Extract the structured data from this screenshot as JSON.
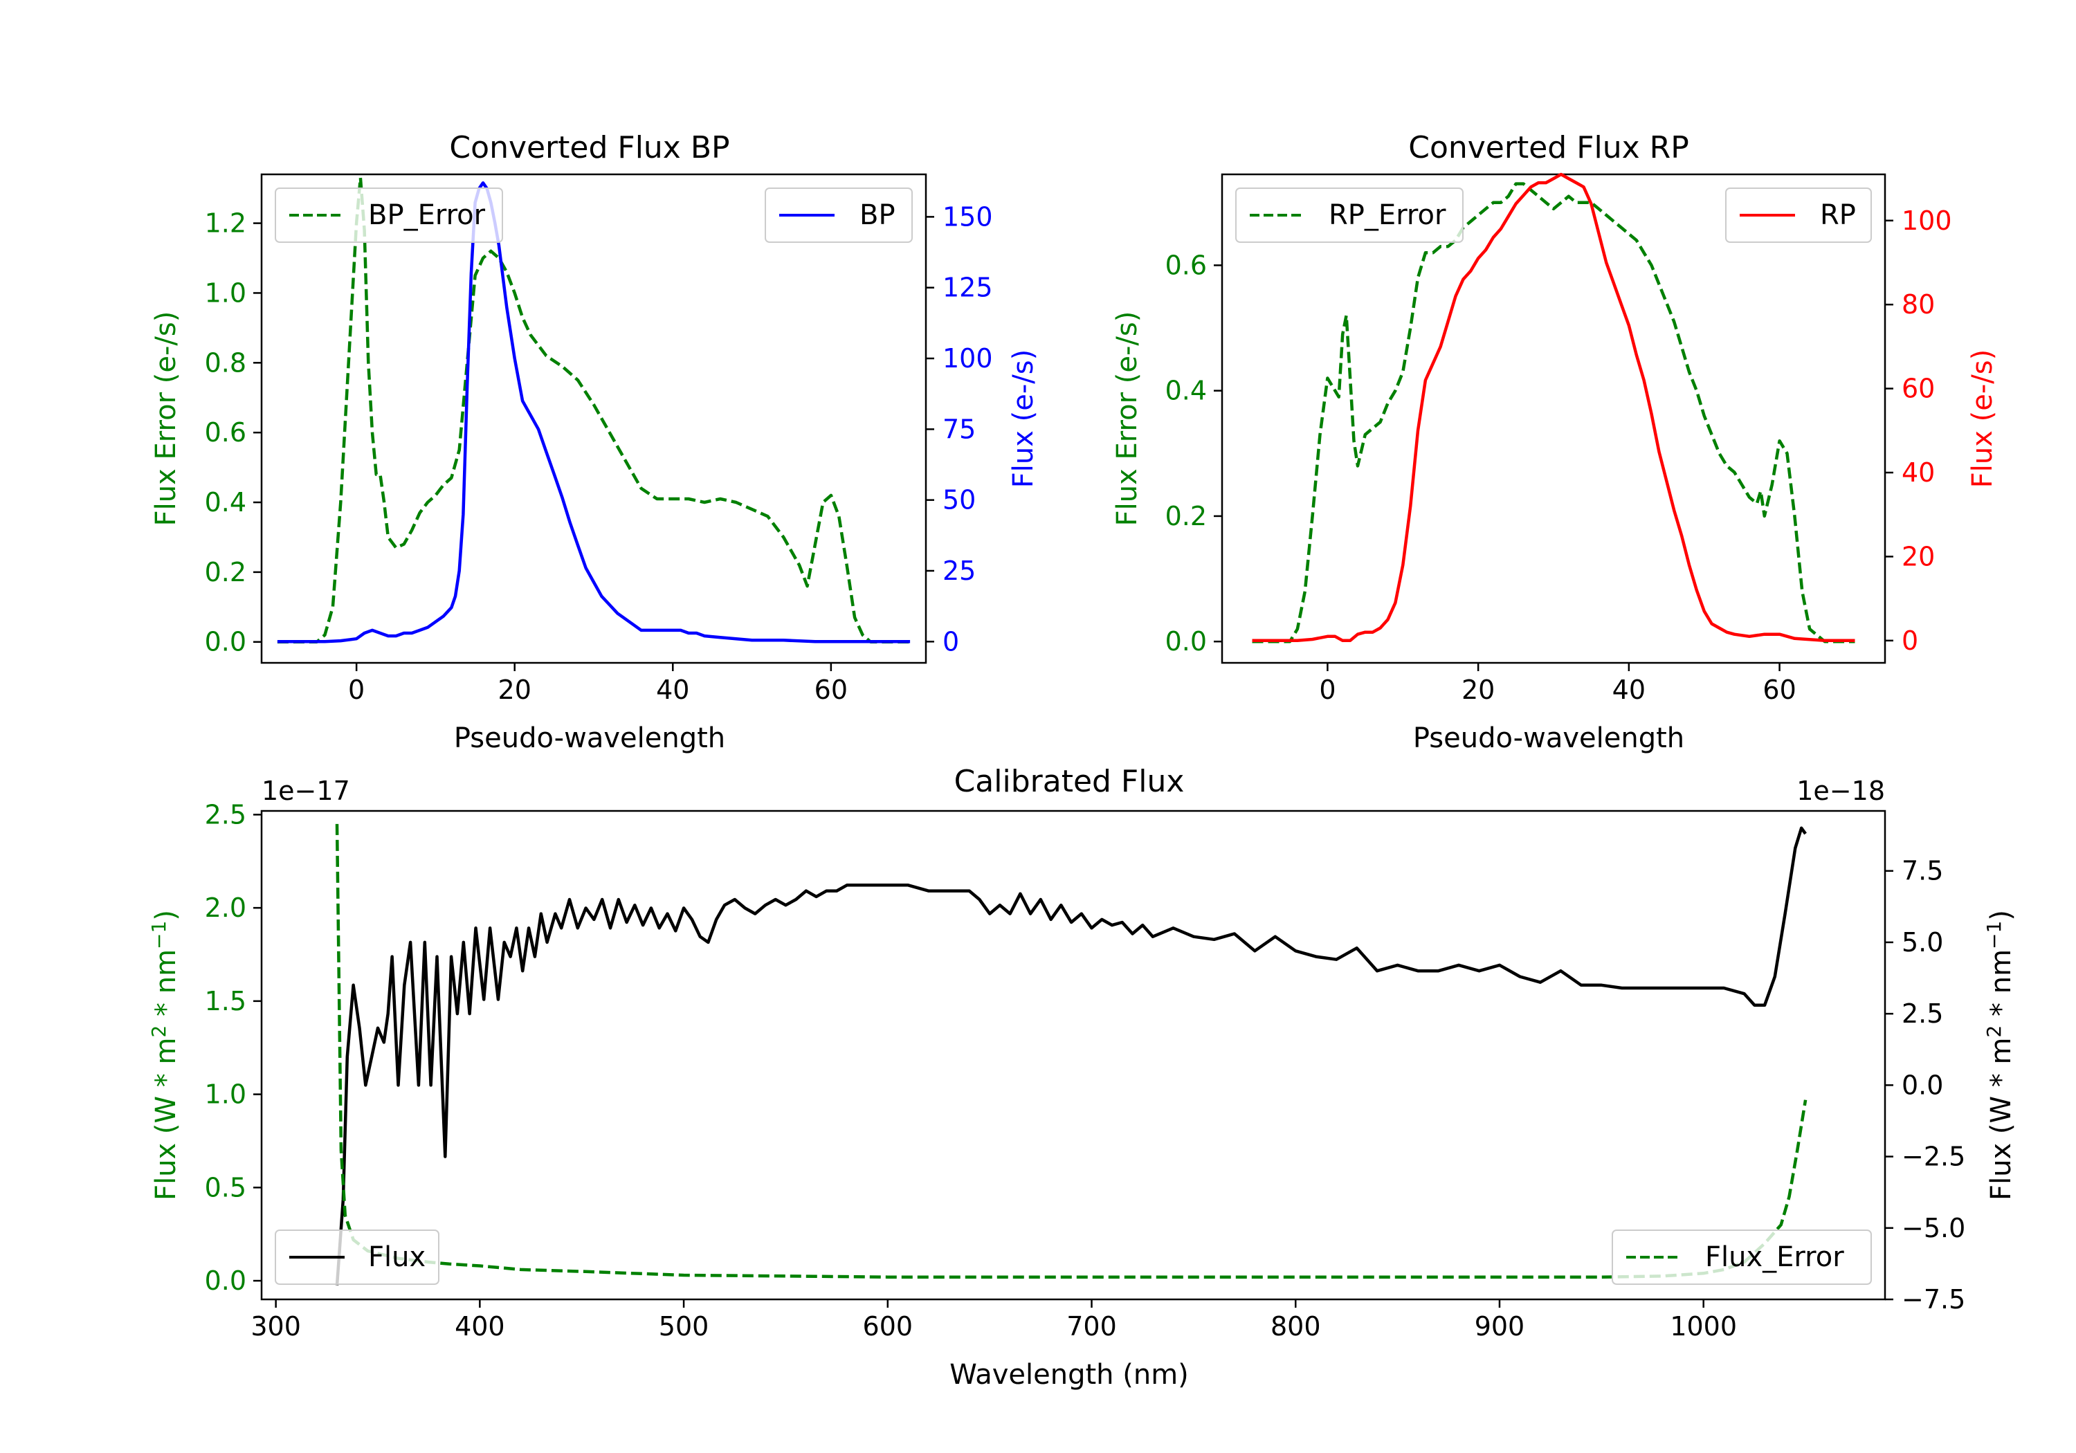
{
  "colors": {
    "error": "#008000",
    "bp": "#0000ff",
    "rp": "#ff0000",
    "flux": "#000000"
  },
  "chart_data": [
    {
      "id": "bp",
      "type": "line",
      "title": "Converted Flux BP",
      "xlabel": "Pseudo-wavelength",
      "ylabel_left": "Flux Error (e-/s)",
      "ylabel_right": "Flux (e-/s)",
      "xlim": [
        -12,
        72
      ],
      "ylim_left": [
        -0.06,
        1.34
      ],
      "ylim_right": [
        -7.5,
        165
      ],
      "xticks": [
        0,
        20,
        40,
        60
      ],
      "xtick_labels": [
        "0",
        "20",
        "40",
        "60"
      ],
      "yticks_left": [
        0.0,
        0.2,
        0.4,
        0.6,
        0.8,
        1.0,
        1.2
      ],
      "ytick_labels_left": [
        "0.0",
        "0.2",
        "0.4",
        "0.6",
        "0.8",
        "1.0",
        "1.2"
      ],
      "yticks_right": [
        0,
        25,
        50,
        75,
        100,
        125,
        150
      ],
      "ytick_labels_right": [
        "0",
        "25",
        "50",
        "75",
        "100",
        "125",
        "150"
      ],
      "legend_left": "top-left",
      "legend_right": "top-right",
      "series": [
        {
          "name": "BP_Error",
          "axis": "left",
          "style": "dashed",
          "color": "#008000",
          "x": [
            -10,
            -5,
            -4,
            -3,
            -2,
            -1,
            0,
            0.5,
            1,
            1.5,
            2,
            2.5,
            3,
            3.5,
            4,
            5,
            6,
            7,
            8,
            9,
            10,
            11,
            12,
            13,
            14,
            15,
            16,
            17,
            18,
            19,
            20,
            21,
            22,
            24,
            26,
            28,
            30,
            32,
            34,
            36,
            38,
            40,
            42,
            44,
            46,
            48,
            50,
            52,
            54,
            56,
            57,
            58,
            59,
            60,
            61,
            62,
            63,
            64,
            65,
            66,
            68,
            70
          ],
          "y": [
            0.0,
            0.0,
            0.02,
            0.1,
            0.4,
            0.8,
            1.2,
            1.33,
            1.18,
            0.8,
            0.6,
            0.48,
            0.48,
            0.4,
            0.3,
            0.27,
            0.28,
            0.32,
            0.37,
            0.4,
            0.42,
            0.45,
            0.47,
            0.55,
            0.8,
            1.05,
            1.1,
            1.12,
            1.1,
            1.06,
            1.0,
            0.93,
            0.88,
            0.82,
            0.79,
            0.75,
            0.68,
            0.6,
            0.52,
            0.44,
            0.41,
            0.41,
            0.41,
            0.4,
            0.41,
            0.4,
            0.38,
            0.36,
            0.3,
            0.22,
            0.16,
            0.28,
            0.4,
            0.42,
            0.36,
            0.22,
            0.07,
            0.02,
            0.0,
            0.0,
            0.0,
            0.0
          ]
        },
        {
          "name": "BP",
          "axis": "right",
          "style": "solid",
          "color": "#0000ff",
          "x": [
            -10,
            -4,
            -2,
            0,
            1,
            2,
            3,
            4,
            5,
            6,
            7,
            8,
            9,
            10,
            11,
            12,
            12.5,
            13,
            13.5,
            14,
            14.5,
            15,
            15.5,
            16,
            16.5,
            17,
            17.5,
            18,
            19,
            20,
            21,
            22,
            23,
            24,
            25,
            26,
            27,
            28,
            29,
            30,
            31,
            32,
            33,
            34,
            35,
            36,
            37,
            38,
            39,
            40,
            41,
            42,
            43,
            44,
            46,
            48,
            50,
            54,
            58,
            62,
            66,
            70
          ],
          "y": [
            0,
            0,
            0.3,
            1.0,
            3,
            4,
            3,
            2,
            2,
            3,
            3,
            4,
            5,
            7,
            9,
            12,
            16,
            25,
            45,
            90,
            130,
            155,
            160,
            162,
            160,
            155,
            148,
            140,
            118,
            100,
            85,
            80,
            75,
            67,
            59,
            51,
            42,
            34,
            26,
            21,
            16,
            13,
            10,
            8,
            6,
            4,
            4,
            4,
            4,
            4,
            4,
            3,
            3,
            2,
            1.5,
            1,
            0.5,
            0.5,
            0,
            0,
            0,
            0
          ]
        }
      ]
    },
    {
      "id": "rp",
      "type": "line",
      "title": "Converted Flux RP",
      "xlabel": "Pseudo-wavelength",
      "ylabel_left": "Flux Error (e-/s)",
      "ylabel_right": "Flux (e-/s)",
      "xlim": [
        -14,
        74
      ],
      "ylim_left": [
        -0.034,
        0.745
      ],
      "ylim_right": [
        -5.3,
        111
      ],
      "xticks": [
        0,
        20,
        40,
        60
      ],
      "xtick_labels": [
        "0",
        "20",
        "40",
        "60"
      ],
      "yticks_left": [
        0.0,
        0.2,
        0.4,
        0.6
      ],
      "ytick_labels_left": [
        "0.0",
        "0.2",
        "0.4",
        "0.6"
      ],
      "yticks_right": [
        0,
        20,
        40,
        60,
        80,
        100
      ],
      "ytick_labels_right": [
        "0",
        "20",
        "40",
        "60",
        "80",
        "100"
      ],
      "legend_left": "top-left",
      "legend_right": "top-right",
      "series": [
        {
          "name": "RP_Error",
          "axis": "left",
          "style": "dashed",
          "color": "#008000",
          "x": [
            -10,
            -5,
            -4,
            -3,
            -2,
            -1,
            0,
            1,
            1.5,
            2,
            2.5,
            3,
            3.5,
            4,
            5,
            6,
            7,
            8,
            9,
            10,
            11,
            12,
            13,
            14,
            15,
            16,
            17,
            18,
            19,
            20,
            21,
            22,
            23,
            24,
            25,
            26,
            27,
            28,
            29,
            30,
            31,
            32,
            33,
            34,
            35,
            36,
            37,
            38,
            39,
            40,
            41,
            42,
            43,
            44,
            45,
            46,
            47,
            48,
            49,
            50,
            51,
            52,
            53,
            54,
            55,
            56,
            57,
            57.5,
            58,
            59,
            60,
            61,
            62,
            63,
            64,
            66,
            70
          ],
          "y": [
            0.0,
            0.0,
            0.02,
            0.08,
            0.2,
            0.33,
            0.42,
            0.4,
            0.39,
            0.49,
            0.52,
            0.42,
            0.32,
            0.28,
            0.33,
            0.34,
            0.35,
            0.38,
            0.4,
            0.43,
            0.5,
            0.58,
            0.62,
            0.62,
            0.63,
            0.63,
            0.64,
            0.66,
            0.67,
            0.68,
            0.69,
            0.7,
            0.7,
            0.71,
            0.73,
            0.73,
            0.72,
            0.71,
            0.7,
            0.69,
            0.7,
            0.71,
            0.7,
            0.7,
            0.7,
            0.69,
            0.68,
            0.67,
            0.66,
            0.65,
            0.64,
            0.62,
            0.6,
            0.57,
            0.54,
            0.51,
            0.47,
            0.43,
            0.4,
            0.36,
            0.33,
            0.3,
            0.28,
            0.27,
            0.25,
            0.23,
            0.22,
            0.24,
            0.2,
            0.25,
            0.32,
            0.3,
            0.2,
            0.08,
            0.02,
            0.0,
            0.0
          ]
        },
        {
          "name": "RP",
          "axis": "right",
          "style": "solid",
          "color": "#ff0000",
          "x": [
            -10,
            -4,
            -2,
            0,
            1,
            2,
            3,
            4,
            5,
            6,
            7,
            8,
            9,
            10,
            11,
            12,
            13,
            14,
            15,
            16,
            17,
            18,
            19,
            20,
            21,
            22,
            23,
            24,
            25,
            26,
            27,
            28,
            29,
            30,
            31,
            32,
            33,
            34,
            35,
            36,
            37,
            38,
            39,
            40,
            41,
            42,
            43,
            44,
            45,
            46,
            47,
            48,
            49,
            50,
            51,
            52,
            53,
            54,
            56,
            58,
            60,
            62,
            66,
            70
          ],
          "y": [
            0,
            0,
            0.3,
            1,
            1,
            0,
            0,
            1.5,
            2,
            2,
            3,
            5,
            9,
            18,
            32,
            50,
            62,
            66,
            70,
            76,
            82,
            86,
            88,
            91,
            93,
            96,
            98,
            101,
            104,
            106,
            108,
            109,
            109,
            110,
            111,
            110,
            109,
            108,
            104,
            97,
            90,
            85,
            80,
            75,
            68,
            62,
            54,
            45,
            38,
            31,
            25,
            18,
            12,
            7,
            4,
            3,
            2,
            1.5,
            1,
            1.5,
            1.5,
            0.5,
            0,
            0
          ]
        }
      ]
    },
    {
      "id": "cal",
      "type": "line",
      "title": "Calibrated Flux",
      "xlabel": "Wavelength (nm)",
      "ylabel_left": "Flux (W * m",
      "ylabel_right": "Flux (W * m",
      "ylabel_sup_1": "2",
      "ylabel_mid": " * nm",
      "ylabel_sup_2": "−1",
      "ylabel_end": ")",
      "offset_left": "1e−17",
      "offset_right": "1e−18",
      "xlim": [
        293,
        1089
      ],
      "ylim_left": [
        -0.1,
        2.52
      ],
      "ylim_right": [
        -7.5,
        9.6
      ],
      "xticks": [
        300,
        400,
        500,
        600,
        700,
        800,
        900,
        1000
      ],
      "xtick_labels": [
        "300",
        "400",
        "500",
        "600",
        "700",
        "800",
        "900",
        "1000"
      ],
      "yticks_left": [
        0.0,
        0.5,
        1.0,
        1.5,
        2.0,
        2.5
      ],
      "ytick_labels_left": [
        "0.0",
        "0.5",
        "1.0",
        "1.5",
        "2.0",
        "2.5"
      ],
      "yticks_right": [
        -7.5,
        -5.0,
        -2.5,
        0.0,
        2.5,
        5.0,
        7.5
      ],
      "ytick_labels_right": [
        "−7.5",
        "−5.0",
        "−2.5",
        "0.0",
        "2.5",
        "5.0",
        "7.5"
      ],
      "legend_left": "bottom-left",
      "legend_right": "bottom-right",
      "series": [
        {
          "name": "Flux",
          "axis": "right",
          "style": "solid",
          "color": "#000000",
          "x": [
            330,
            331,
            333,
            335,
            338,
            341,
            344,
            347,
            350,
            353,
            355,
            357,
            360,
            363,
            366,
            370,
            373,
            376,
            379,
            383,
            386,
            389,
            392,
            395,
            398,
            402,
            405,
            409,
            412,
            415,
            418,
            421,
            424,
            427,
            430,
            433,
            437,
            440,
            444,
            448,
            452,
            456,
            460,
            464,
            468,
            472,
            476,
            480,
            484,
            488,
            492,
            496,
            500,
            504,
            508,
            512,
            516,
            520,
            525,
            530,
            535,
            540,
            545,
            550,
            555,
            560,
            565,
            570,
            575,
            580,
            590,
            600,
            610,
            620,
            630,
            640,
            645,
            650,
            655,
            660,
            665,
            670,
            675,
            680,
            685,
            690,
            695,
            700,
            705,
            710,
            715,
            720,
            725,
            730,
            740,
            750,
            760,
            770,
            780,
            790,
            800,
            810,
            820,
            830,
            840,
            850,
            860,
            870,
            880,
            890,
            900,
            910,
            920,
            930,
            940,
            950,
            960,
            980,
            1000,
            1010,
            1020,
            1025,
            1030,
            1035,
            1040,
            1045,
            1048,
            1050
          ],
          "y": [
            -7,
            -6,
            -4,
            1,
            3.5,
            2,
            0,
            1,
            2,
            1.5,
            2.5,
            4.5,
            0,
            3.5,
            5,
            0,
            5,
            0,
            4.5,
            -2.5,
            4.5,
            2.5,
            5,
            2.5,
            5.5,
            3,
            5.5,
            3,
            5,
            4.5,
            5.5,
            4,
            5.5,
            4.5,
            6,
            5,
            6,
            5.5,
            6.5,
            5.5,
            6.2,
            5.8,
            6.5,
            5.5,
            6.5,
            5.7,
            6.3,
            5.6,
            6.2,
            5.5,
            6.0,
            5.4,
            6.2,
            5.8,
            5.2,
            5.0,
            5.8,
            6.3,
            6.5,
            6.2,
            6.0,
            6.3,
            6.5,
            6.3,
            6.5,
            6.8,
            6.6,
            6.8,
            6.8,
            7.0,
            7.0,
            7.0,
            7.0,
            6.8,
            6.8,
            6.8,
            6.5,
            6.0,
            6.3,
            6.0,
            6.7,
            6.0,
            6.5,
            5.8,
            6.3,
            5.7,
            6.0,
            5.5,
            5.8,
            5.6,
            5.7,
            5.3,
            5.6,
            5.2,
            5.5,
            5.2,
            5.1,
            5.3,
            4.7,
            5.2,
            4.7,
            4.5,
            4.4,
            4.8,
            4.0,
            4.2,
            4.0,
            4.0,
            4.2,
            4.0,
            4.2,
            3.8,
            3.6,
            4.0,
            3.5,
            3.5,
            3.4,
            3.4,
            3.4,
            3.4,
            3.2,
            2.8,
            2.8,
            3.8,
            6.0,
            8.3,
            9.0,
            8.8
          ]
        },
        {
          "name": "Flux_Error",
          "axis": "left",
          "style": "dashed",
          "color": "#008000",
          "x": [
            330,
            332,
            334,
            338,
            345,
            360,
            375,
            385,
            400,
            420,
            450,
            500,
            550,
            600,
            650,
            700,
            750,
            800,
            850,
            900,
            950,
            980,
            1000,
            1010,
            1020,
            1030,
            1038,
            1042,
            1046,
            1050
          ],
          "y": [
            2.45,
            0.7,
            0.35,
            0.22,
            0.16,
            0.12,
            0.1,
            0.09,
            0.08,
            0.06,
            0.05,
            0.03,
            0.025,
            0.02,
            0.02,
            0.02,
            0.02,
            0.02,
            0.02,
            0.02,
            0.02,
            0.025,
            0.04,
            0.06,
            0.1,
            0.2,
            0.3,
            0.45,
            0.7,
            0.97
          ]
        }
      ]
    }
  ]
}
